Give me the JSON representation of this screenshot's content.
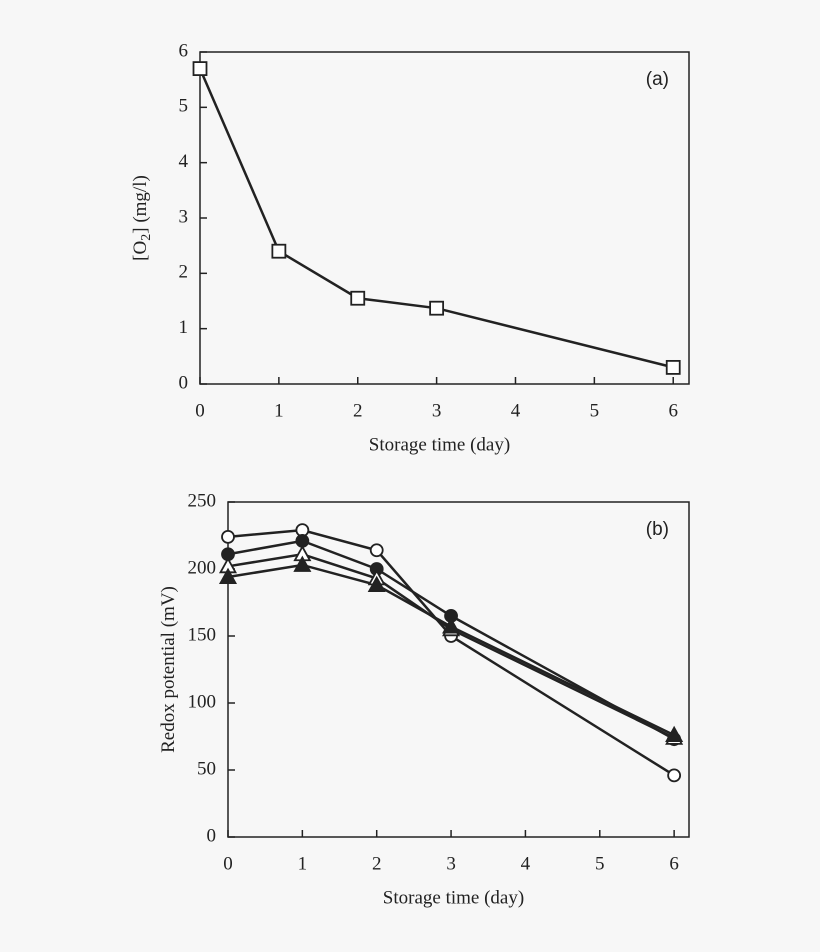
{
  "chart_data": [
    {
      "type": "line",
      "annotation": "(a)",
      "xlabel": "Storage time (day)",
      "ylabel": [
        "[O",
        "2",
        "] (mg/l)"
      ],
      "x": [
        0,
        1,
        2,
        3,
        6
      ],
      "xlim": [
        0,
        6.2
      ],
      "xticks": [
        0,
        1,
        2,
        3,
        4,
        5,
        6
      ],
      "ylim": [
        0,
        6
      ],
      "yticks": [
        0,
        1,
        2,
        3,
        4,
        5,
        6
      ],
      "series": [
        {
          "marker": "open-square",
          "color": "#222222",
          "values": [
            5.7,
            2.4,
            1.55,
            1.37,
            0.3
          ]
        }
      ]
    },
    {
      "type": "line",
      "annotation": "(b)",
      "xlabel": "Storage time (day)",
      "ylabel": [
        "Redox potential (mV)"
      ],
      "x": [
        0,
        1,
        2,
        3,
        6
      ],
      "xlim": [
        0,
        6.2
      ],
      "xticks": [
        0,
        1,
        2,
        3,
        4,
        5,
        6
      ],
      "ylim": [
        0,
        250
      ],
      "yticks": [
        0,
        50,
        100,
        150,
        200,
        250
      ],
      "series": [
        {
          "marker": "open-circle",
          "color": "#222222",
          "values": [
            224,
            229,
            214,
            150,
            46
          ]
        },
        {
          "marker": "filled-circle",
          "color": "#222222",
          "values": [
            211,
            221,
            200,
            165,
            73
          ]
        },
        {
          "marker": "open-triangle",
          "color": "#222222",
          "values": [
            202,
            211,
            193,
            155,
            74
          ]
        },
        {
          "marker": "filled-triangle",
          "color": "#222222",
          "values": [
            194,
            203,
            188,
            157,
            76
          ]
        }
      ]
    }
  ]
}
